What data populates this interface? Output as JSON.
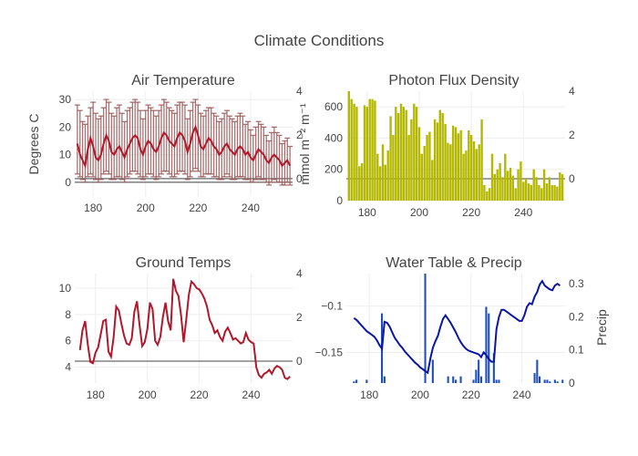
{
  "figure": {
    "title": "Climate Conditions"
  },
  "chart_data": [
    {
      "type": "line",
      "title": "Air Temperature",
      "ylabel": "Degrees C",
      "xlim": [
        173,
        256
      ],
      "ylim": [
        -5,
        33
      ],
      "y2lim": [
        -0.8,
        4
      ],
      "xticks": [
        180,
        200,
        220,
        240
      ],
      "yticks": [
        0,
        10,
        20,
        30
      ],
      "y2ticks": [
        0,
        2,
        4
      ],
      "series": [
        {
          "x": [
            174,
            175,
            176,
            177,
            178,
            179,
            180,
            181,
            182,
            183,
            184,
            185,
            186,
            187,
            188,
            189,
            190,
            191,
            192,
            193,
            194,
            195,
            196,
            197,
            198,
            199,
            200,
            201,
            202,
            203,
            204,
            205,
            206,
            207,
            208,
            209,
            210,
            211,
            212,
            213,
            214,
            215,
            216,
            217,
            218,
            219,
            220,
            221,
            222,
            223,
            224,
            225,
            226,
            227,
            228,
            229,
            230,
            231,
            232,
            233,
            234,
            235,
            236,
            237,
            238,
            239,
            240,
            241,
            242,
            243,
            244,
            245,
            246,
            247,
            248,
            249,
            250,
            251,
            252,
            253,
            254,
            255
          ],
          "mean": [
            14,
            10,
            8,
            6,
            12,
            16,
            13,
            9,
            8,
            10,
            14,
            17,
            15,
            11,
            10,
            12,
            13,
            11,
            9,
            12,
            14,
            16,
            17,
            16,
            12,
            10,
            13,
            15,
            14,
            12,
            11,
            13,
            16,
            18,
            17,
            15,
            14,
            13,
            16,
            18,
            17,
            15,
            11,
            14,
            18,
            20,
            17,
            13,
            12,
            14,
            16,
            15,
            13,
            12,
            10,
            11,
            13,
            14,
            12,
            11,
            10,
            12,
            13,
            12,
            10,
            11,
            9,
            8,
            10,
            12,
            11,
            10,
            8,
            7,
            9,
            10,
            9,
            8,
            6,
            7,
            8,
            6
          ],
          "lo": [
            3,
            2,
            1,
            0,
            2,
            3,
            2,
            1,
            0,
            1,
            3,
            4,
            3,
            1,
            1,
            2,
            2,
            1,
            0,
            2,
            3,
            4,
            4,
            3,
            2,
            1,
            2,
            3,
            3,
            2,
            1,
            2,
            3,
            4,
            4,
            3,
            2,
            2,
            3,
            4,
            4,
            3,
            1,
            2,
            4,
            5,
            4,
            2,
            2,
            3,
            3,
            3,
            2,
            2,
            1,
            1,
            2,
            3,
            2,
            1,
            1,
            2,
            2,
            2,
            1,
            1,
            0,
            0,
            1,
            2,
            1,
            1,
            0,
            -1,
            0,
            1,
            0,
            0,
            -1,
            -1,
            0,
            -1
          ],
          "hi": [
            28,
            26,
            22,
            21,
            24,
            27,
            29,
            25,
            23,
            24,
            27,
            30,
            29,
            25,
            24,
            27,
            28,
            25,
            22,
            26,
            27,
            29,
            30,
            29,
            26,
            23,
            26,
            28,
            27,
            26,
            24,
            26,
            28,
            30,
            29,
            27,
            26,
            25,
            28,
            29,
            29,
            28,
            23,
            26,
            29,
            30,
            28,
            25,
            24,
            26,
            27,
            27,
            25,
            24,
            22,
            23,
            25,
            26,
            24,
            23,
            22,
            24,
            25,
            24,
            21,
            22,
            19,
            17,
            20,
            22,
            21,
            20,
            17,
            15,
            18,
            20,
            18,
            17,
            14,
            15,
            16,
            13
          ]
        }
      ]
    },
    {
      "type": "bar",
      "title": "Photon Flux Density",
      "ylabel": "mmol m⁻² m⁻¹",
      "xlim": [
        172,
        256
      ],
      "ylim": [
        0,
        700
      ],
      "y2lim": [
        -1.0,
        4
      ],
      "xticks": [
        180,
        200,
        220,
        240
      ],
      "yticks": [
        0,
        200,
        400,
        600
      ],
      "y2ticks": [
        0,
        2,
        4
      ],
      "series": [
        {
          "x": [
            173,
            174,
            175,
            176,
            177,
            178,
            179,
            180,
            181,
            182,
            183,
            184,
            185,
            186,
            187,
            188,
            189,
            190,
            191,
            192,
            193,
            194,
            195,
            196,
            197,
            198,
            199,
            200,
            201,
            202,
            203,
            204,
            205,
            206,
            207,
            208,
            209,
            210,
            211,
            212,
            213,
            214,
            215,
            216,
            217,
            218,
            219,
            220,
            221,
            222,
            223,
            224,
            225,
            226,
            227,
            228,
            229,
            230,
            231,
            232,
            233,
            234,
            235,
            236,
            237,
            238,
            239,
            240,
            241,
            242,
            243,
            244,
            245,
            246,
            247,
            248,
            249,
            250,
            251,
            252,
            253,
            254,
            255
          ],
          "values": [
            700,
            650,
            620,
            600,
            220,
            240,
            610,
            600,
            650,
            650,
            640,
            300,
            220,
            360,
            230,
            320,
            540,
            420,
            600,
            560,
            620,
            600,
            580,
            420,
            520,
            620,
            600,
            470,
            300,
            350,
            420,
            440,
            260,
            520,
            500,
            580,
            560,
            490,
            370,
            360,
            480,
            470,
            430,
            450,
            300,
            320,
            450,
            420,
            380,
            330,
            360,
            520,
            100,
            60,
            80,
            300,
            170,
            200,
            240,
            150,
            300,
            190,
            210,
            160,
            80,
            200,
            250,
            120,
            140,
            110,
            100,
            200,
            150,
            100,
            80,
            200,
            110,
            150,
            100,
            100,
            90,
            180,
            170
          ]
        }
      ]
    },
    {
      "type": "line",
      "title": "Ground Temps",
      "xlim": [
        172,
        256
      ],
      "ylim": [
        2.8,
        11.1
      ],
      "y2lim": [
        -1.0,
        4
      ],
      "xticks": [
        180,
        200,
        220,
        240
      ],
      "yticks": [
        4,
        6,
        8,
        10
      ],
      "y2ticks": [
        0,
        2,
        4
      ],
      "series": [
        {
          "x": [
            174,
            175,
            176,
            177,
            178,
            179,
            180,
            181,
            182,
            183,
            184,
            185,
            186,
            187,
            188,
            189,
            190,
            191,
            192,
            193,
            194,
            195,
            196,
            197,
            198,
            199,
            200,
            201,
            202,
            203,
            204,
            205,
            206,
            207,
            208,
            209,
            210,
            211,
            212,
            213,
            214,
            215,
            216,
            217,
            218,
            219,
            220,
            221,
            222,
            223,
            224,
            225,
            226,
            227,
            228,
            229,
            230,
            231,
            232,
            233,
            234,
            235,
            236,
            237,
            238,
            239,
            240,
            241,
            242,
            243,
            244,
            245,
            246,
            247,
            248,
            249,
            250,
            251,
            252,
            253,
            254,
            255
          ],
          "values": [
            5.3,
            6.8,
            7.5,
            5.8,
            4.4,
            4.3,
            5.1,
            5.5,
            6.5,
            7.5,
            7.6,
            5.2,
            4.8,
            6.3,
            8.6,
            8.3,
            7.3,
            6.4,
            5.8,
            5.7,
            6.2,
            8.2,
            9.0,
            7.2,
            5.6,
            5.9,
            6.9,
            8.9,
            8.4,
            6.0,
            5.7,
            6.3,
            7.8,
            8.9,
            7.5,
            6.8,
            10.7,
            9.8,
            9.4,
            7.9,
            5.9,
            7.6,
            9.5,
            10.5,
            10.3,
            10.0,
            9.9,
            9.6,
            9.2,
            8.6,
            7.6,
            7.2,
            6.6,
            6.8,
            6.3,
            6.0,
            6.7,
            7.0,
            6.6,
            6.1,
            6.2,
            6.0,
            5.8,
            5.9,
            6.6,
            6.1,
            5.9,
            5.8,
            4.0,
            3.4,
            3.2,
            3.5,
            3.6,
            3.8,
            3.5,
            3.9,
            4.1,
            4.0,
            3.8,
            3.2,
            3.1,
            3.3
          ]
        }
      ]
    },
    {
      "type": "bar",
      "title": "Water Table & Precip",
      "y2label": "Precip",
      "xlim": [
        171,
        257
      ],
      "ylim": [
        -0.183,
        -0.065
      ],
      "y2lim": [
        0,
        0.33
      ],
      "xticks": [
        180,
        200,
        220,
        240
      ],
      "yticks": [
        -0.15,
        -0.1
      ],
      "y2ticks": [
        0,
        0.1,
        0.2,
        0.3
      ],
      "series": [
        {
          "x": [
            174,
            175,
            176,
            177,
            178,
            179,
            180,
            181,
            182,
            183,
            184,
            185,
            186,
            187,
            188,
            189,
            190,
            191,
            192,
            193,
            194,
            195,
            196,
            197,
            198,
            199,
            200,
            201,
            202,
            203,
            204,
            205,
            206,
            207,
            208,
            209,
            210,
            211,
            212,
            213,
            214,
            215,
            216,
            217,
            218,
            219,
            220,
            221,
            222,
            223,
            224,
            225,
            226,
            227,
            228,
            229,
            230,
            231,
            232,
            233,
            234,
            235,
            236,
            237,
            238,
            239,
            240,
            241,
            242,
            243,
            244,
            245,
            246,
            247,
            248,
            249,
            250,
            251,
            252,
            253,
            254,
            255
          ],
          "values": [
            -0.113,
            -0.115,
            -0.118,
            -0.121,
            -0.124,
            -0.127,
            -0.129,
            -0.131,
            -0.133,
            -0.137,
            -0.142,
            -0.146,
            -0.117,
            -0.118,
            -0.122,
            -0.128,
            -0.134,
            -0.138,
            -0.142,
            -0.145,
            -0.149,
            -0.152,
            -0.155,
            -0.158,
            -0.161,
            -0.163,
            -0.166,
            -0.168,
            -0.17,
            -0.172,
            -0.157,
            -0.145,
            -0.138,
            -0.132,
            -0.122,
            -0.114,
            -0.11,
            -0.114,
            -0.118,
            -0.123,
            -0.128,
            -0.134,
            -0.139,
            -0.143,
            -0.146,
            -0.148,
            -0.149,
            -0.15,
            -0.151,
            -0.152,
            -0.155,
            -0.15,
            -0.153,
            -0.157,
            -0.16,
            -0.16,
            -0.125,
            -0.112,
            -0.104,
            -0.104,
            -0.106,
            -0.108,
            -0.11,
            -0.112,
            -0.114,
            -0.116,
            -0.116,
            -0.11,
            -0.101,
            -0.097,
            -0.098,
            -0.09,
            -0.085,
            -0.077,
            -0.073,
            -0.078,
            -0.08,
            -0.082,
            -0.083,
            -0.078,
            -0.076,
            -0.078
          ]
        },
        {
          "x": [
            174,
            175,
            179,
            185,
            186,
            202,
            205,
            211,
            213,
            214,
            216,
            221,
            222,
            223,
            224,
            226,
            227,
            229,
            230,
            231,
            245,
            246,
            247,
            249,
            250,
            251,
            253,
            254,
            256
          ],
          "values": [
            0.005,
            0.01,
            0.01,
            0.21,
            0.02,
            0.33,
            0.07,
            0.02,
            0.02,
            0.01,
            0.02,
            0.01,
            0.04,
            0.07,
            0.02,
            0.23,
            0.21,
            0.09,
            0.01,
            0.01,
            0.03,
            0.07,
            0.02,
            0.01,
            0.01,
            0.005,
            0.01,
            0.005,
            0.01
          ]
        }
      ]
    }
  ]
}
